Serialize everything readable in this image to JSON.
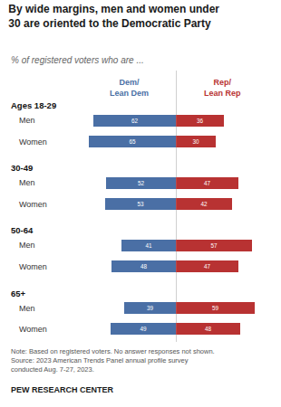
{
  "chart_data": {
    "type": "bar",
    "orientation": "horizontal",
    "title": "By wide margins, men and women under\n30 are oriented to the Democratic Party",
    "subtitle": "% of registered voters who are ...",
    "groups": [
      {
        "label": "Ages 18-29",
        "categories": [
          "Men",
          "Women"
        ]
      },
      {
        "label": "30-49",
        "categories": [
          "Men",
          "Women"
        ]
      },
      {
        "label": "50-64",
        "categories": [
          "Men",
          "Women"
        ]
      },
      {
        "label": "65+",
        "categories": [
          "Men",
          "Women"
        ]
      }
    ],
    "series": [
      {
        "name": "Dem/\nLean Dem",
        "color": "#4a6fa5",
        "values": [
          62,
          65,
          52,
          53,
          41,
          48,
          39,
          49
        ]
      },
      {
        "name": "Rep/\nLean Rep",
        "color": "#b83232",
        "values": [
          36,
          30,
          47,
          42,
          57,
          47,
          59,
          48
        ]
      }
    ],
    "xlim": [
      0,
      70
    ],
    "tick_labels": false,
    "grid": false,
    "data_labels": true,
    "note": "Note: Based on registered voters. No answer responses not shown.\nSource: 2023 American Trends Panel annual profile survey\nconducted Aug. 7-27, 2023.",
    "source": "PEW RESEARCH CENTER"
  }
}
